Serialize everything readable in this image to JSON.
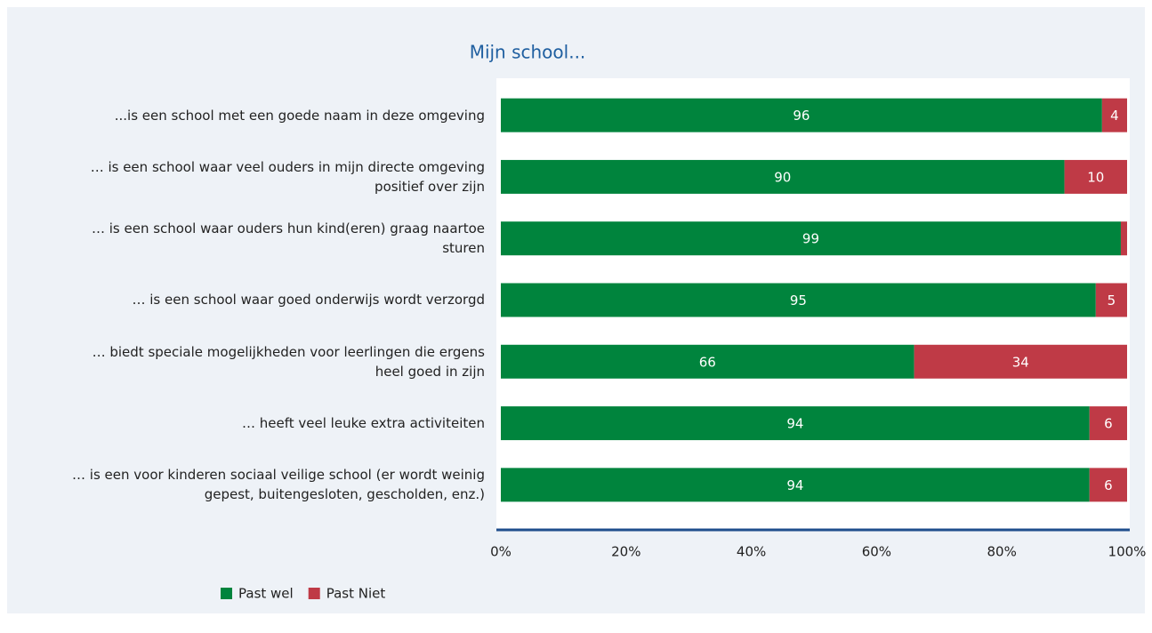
{
  "chart_data": {
    "type": "stacked_barh",
    "title": "Mijn school...",
    "categories": [
      "...is een school met een goede naam in deze omgeving",
      "… is een school waar veel ouders in mijn directe omgeving positief over zijn",
      "… is een school waar ouders hun kind(eren) graag naartoe sturen",
      "… is een school waar goed onderwijs wordt verzorgd",
      "… biedt speciale mogelijkheden voor leerlingen die ergens heel goed in zijn",
      "… heeft veel leuke extra activiteiten",
      "… is een voor kinderen sociaal veilige school (er wordt weinig gepest, buitengesloten, gescholden, enz.)"
    ],
    "series": [
      {
        "name": "Past wel",
        "color": "#00843d",
        "values": [
          96,
          90,
          99,
          95,
          66,
          94,
          94
        ]
      },
      {
        "name": "Past Niet",
        "color": "#bf3a46",
        "values": [
          4,
          10,
          1,
          5,
          34,
          6,
          6
        ]
      }
    ],
    "xlim": [
      0,
      100
    ],
    "xticks": [
      {
        "value": 0,
        "label": "0%"
      },
      {
        "value": 20,
        "label": "20%"
      },
      {
        "value": 40,
        "label": "40%"
      },
      {
        "value": 60,
        "label": "60%"
      },
      {
        "value": 80,
        "label": "80%"
      },
      {
        "value": 100,
        "label": "100%"
      }
    ],
    "legend": "bottom-left"
  }
}
